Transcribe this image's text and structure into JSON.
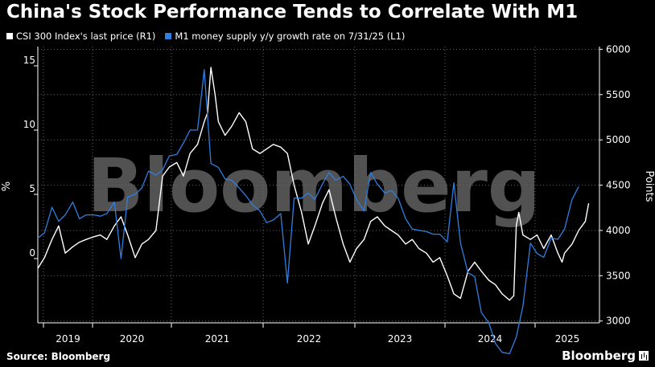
{
  "title": "China's Stock Performance Tends to Correlate With M1",
  "legend": [
    {
      "label": "CSI 300 Index's last price (R1)",
      "color": "#ffffff"
    },
    {
      "label": "M1 money supply y/y growth rate on 7/31/25 (L1)",
      "color": "#2f7fe0"
    }
  ],
  "source": "Source: Bloomberg",
  "brand": "Bloomberg",
  "watermark": "Bloomberg",
  "colors": {
    "background": "#000000",
    "csi": "#ffffff",
    "m1": "#2f7fe0",
    "grid": "#666666"
  },
  "chart_data": {
    "type": "line",
    "title": "China's Stock Performance Tends to Correlate With M1",
    "x_tick_labels": [
      "2019",
      "2020",
      "2021",
      "2022",
      "2023",
      "2024",
      "2025"
    ],
    "xlim": [
      2019.0,
      2025.75
    ],
    "left_axis": {
      "label": "%",
      "ticks": [
        0,
        5,
        10,
        15
      ],
      "ylim": [
        -5,
        16.5
      ]
    },
    "right_axis": {
      "label": "Points",
      "ticks": [
        3000,
        3500,
        4000,
        4500,
        5000,
        5500,
        6000
      ],
      "ylim": [
        2980,
        6030
      ]
    },
    "grid": true,
    "legend_position": "top-left",
    "series": [
      {
        "name": "CSI 300 Index's last price (R1)",
        "axis": "right",
        "color": "#ffffff",
        "x": [
          2019.0,
          2019.08,
          2019.17,
          2019.25,
          2019.33,
          2019.42,
          2019.5,
          2019.58,
          2019.67,
          2019.75,
          2019.83,
          2019.92,
          2020.0,
          2020.08,
          2020.17,
          2020.25,
          2020.33,
          2020.42,
          2020.5,
          2020.58,
          2020.67,
          2020.75,
          2020.83,
          2020.92,
          2021.0,
          2021.04,
          2021.08,
          2021.13,
          2021.17,
          2021.25,
          2021.33,
          2021.42,
          2021.5,
          2021.58,
          2021.67,
          2021.75,
          2021.83,
          2021.92,
          2022.0,
          2022.08,
          2022.17,
          2022.25,
          2022.33,
          2022.42,
          2022.5,
          2022.58,
          2022.67,
          2022.75,
          2022.83,
          2022.92,
          2023.0,
          2023.08,
          2023.17,
          2023.25,
          2023.33,
          2023.42,
          2023.5,
          2023.58,
          2023.67,
          2023.75,
          2023.83,
          2023.92,
          2024.0,
          2024.08,
          2024.17,
          2024.25,
          2024.33,
          2024.42,
          2024.5,
          2024.58,
          2024.67,
          2024.72,
          2024.75,
          2024.78,
          2024.83,
          2024.92,
          2025.0,
          2025.08,
          2025.17,
          2025.25,
          2025.3,
          2025.33,
          2025.42,
          2025.5,
          2025.58,
          2025.62
        ],
        "values": [
          3580,
          3700,
          3900,
          4050,
          3750,
          3820,
          3870,
          3900,
          3930,
          3950,
          3900,
          4050,
          4150,
          3950,
          3700,
          3850,
          3900,
          4000,
          4600,
          4700,
          4750,
          4600,
          4850,
          4950,
          5200,
          5300,
          5800,
          5500,
          5200,
          5050,
          5150,
          5300,
          5200,
          4900,
          4850,
          4900,
          4950,
          4920,
          4850,
          4500,
          4200,
          3850,
          4050,
          4300,
          4450,
          4150,
          3850,
          3650,
          3800,
          3900,
          4100,
          4150,
          4050,
          4000,
          3950,
          3850,
          3900,
          3800,
          3750,
          3650,
          3700,
          3500,
          3300,
          3250,
          3550,
          3650,
          3550,
          3450,
          3400,
          3300,
          3230,
          3280,
          4050,
          4200,
          3950,
          3900,
          3950,
          3800,
          3950,
          3750,
          3650,
          3750,
          3850,
          4000,
          4100,
          4300
        ]
      },
      {
        "name": "M1 money supply y/y growth rate on 7/31/25 (L1)",
        "axis": "left",
        "color": "#2f7fe0",
        "x": [
          2019.0,
          2019.08,
          2019.17,
          2019.25,
          2019.33,
          2019.42,
          2019.5,
          2019.58,
          2019.67,
          2019.75,
          2019.83,
          2019.92,
          2020.0,
          2020.08,
          2020.17,
          2020.25,
          2020.33,
          2020.42,
          2020.5,
          2020.58,
          2020.67,
          2020.75,
          2020.83,
          2020.92,
          2021.0,
          2021.08,
          2021.17,
          2021.25,
          2021.33,
          2021.42,
          2021.5,
          2021.58,
          2021.67,
          2021.75,
          2021.83,
          2021.92,
          2022.0,
          2022.08,
          2022.17,
          2022.25,
          2022.33,
          2022.42,
          2022.5,
          2022.58,
          2022.67,
          2022.75,
          2022.83,
          2022.92,
          2023.0,
          2023.08,
          2023.17,
          2023.25,
          2023.33,
          2023.42,
          2023.5,
          2023.58,
          2023.67,
          2023.75,
          2023.83,
          2023.92,
          2024.0,
          2024.08,
          2024.17,
          2024.25,
          2024.33,
          2024.42,
          2024.5,
          2024.58,
          2024.67,
          2024.75,
          2024.83,
          2024.92,
          2025.0,
          2025.08,
          2025.17,
          2025.25,
          2025.33,
          2025.42,
          2025.5
        ],
        "values": [
          1.6,
          2.0,
          4.0,
          2.9,
          3.4,
          4.4,
          3.1,
          3.4,
          3.4,
          3.3,
          3.5,
          4.4,
          0.0,
          4.8,
          5.0,
          5.5,
          6.8,
          6.5,
          6.9,
          8.0,
          8.1,
          9.0,
          10.0,
          10.0,
          14.7,
          7.4,
          7.1,
          6.2,
          6.1,
          5.5,
          4.9,
          4.2,
          3.7,
          2.8,
          3.0,
          3.5,
          -1.9,
          4.7,
          4.7,
          5.1,
          4.6,
          5.8,
          6.7,
          6.1,
          6.4,
          5.8,
          4.6,
          3.7,
          6.7,
          5.8,
          5.1,
          5.3,
          4.7,
          3.1,
          2.3,
          2.2,
          2.1,
          1.9,
          1.9,
          1.3,
          5.9,
          1.2,
          -1.1,
          -1.4,
          -4.2,
          -5.0,
          -6.6,
          -7.3,
          -7.4,
          -6.1,
          -3.7,
          1.2,
          0.4,
          0.1,
          1.6,
          1.5,
          2.3,
          4.6,
          5.6
        ]
      }
    ]
  }
}
